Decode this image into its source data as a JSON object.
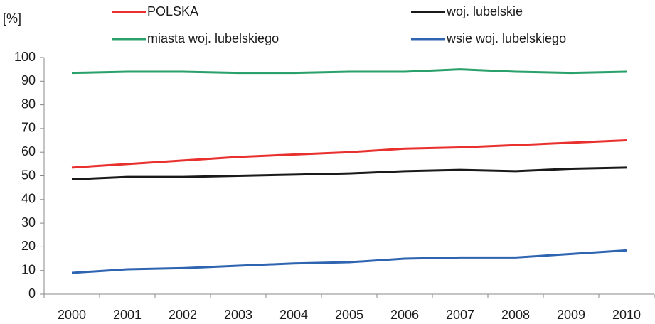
{
  "chart_data": {
    "type": "line",
    "y_label": "[%]",
    "categories": [
      "2000",
      "2001",
      "2002",
      "2003",
      "2004",
      "2005",
      "2006",
      "2007",
      "2008",
      "2009",
      "2010"
    ],
    "series": [
      {
        "name": "POLSKA",
        "color": "#e8312f",
        "values": [
          53.5,
          55,
          56.5,
          58,
          59,
          60,
          61.5,
          62,
          63,
          64,
          65
        ]
      },
      {
        "name": "woj. lubelskie",
        "color": "#1a1a1a",
        "values": [
          48.5,
          49.5,
          49.5,
          50,
          50.5,
          51,
          52,
          52.5,
          52,
          53,
          53.5
        ]
      },
      {
        "name": "miasta woj. lubelskiego",
        "color": "#2aa06a",
        "values": [
          93.5,
          94,
          94,
          93.5,
          93.5,
          94,
          94,
          95,
          94,
          93.5,
          94
        ]
      },
      {
        "name": "wsie woj. lubelskiego",
        "color": "#2e64b0",
        "values": [
          9,
          10.5,
          11,
          12,
          13,
          13.5,
          15,
          15.5,
          15.5,
          17,
          18.5
        ]
      }
    ],
    "ylim": [
      0,
      100
    ],
    "yticks": [
      0,
      10,
      20,
      30,
      40,
      50,
      60,
      70,
      80,
      90,
      100
    ],
    "grid": false
  }
}
